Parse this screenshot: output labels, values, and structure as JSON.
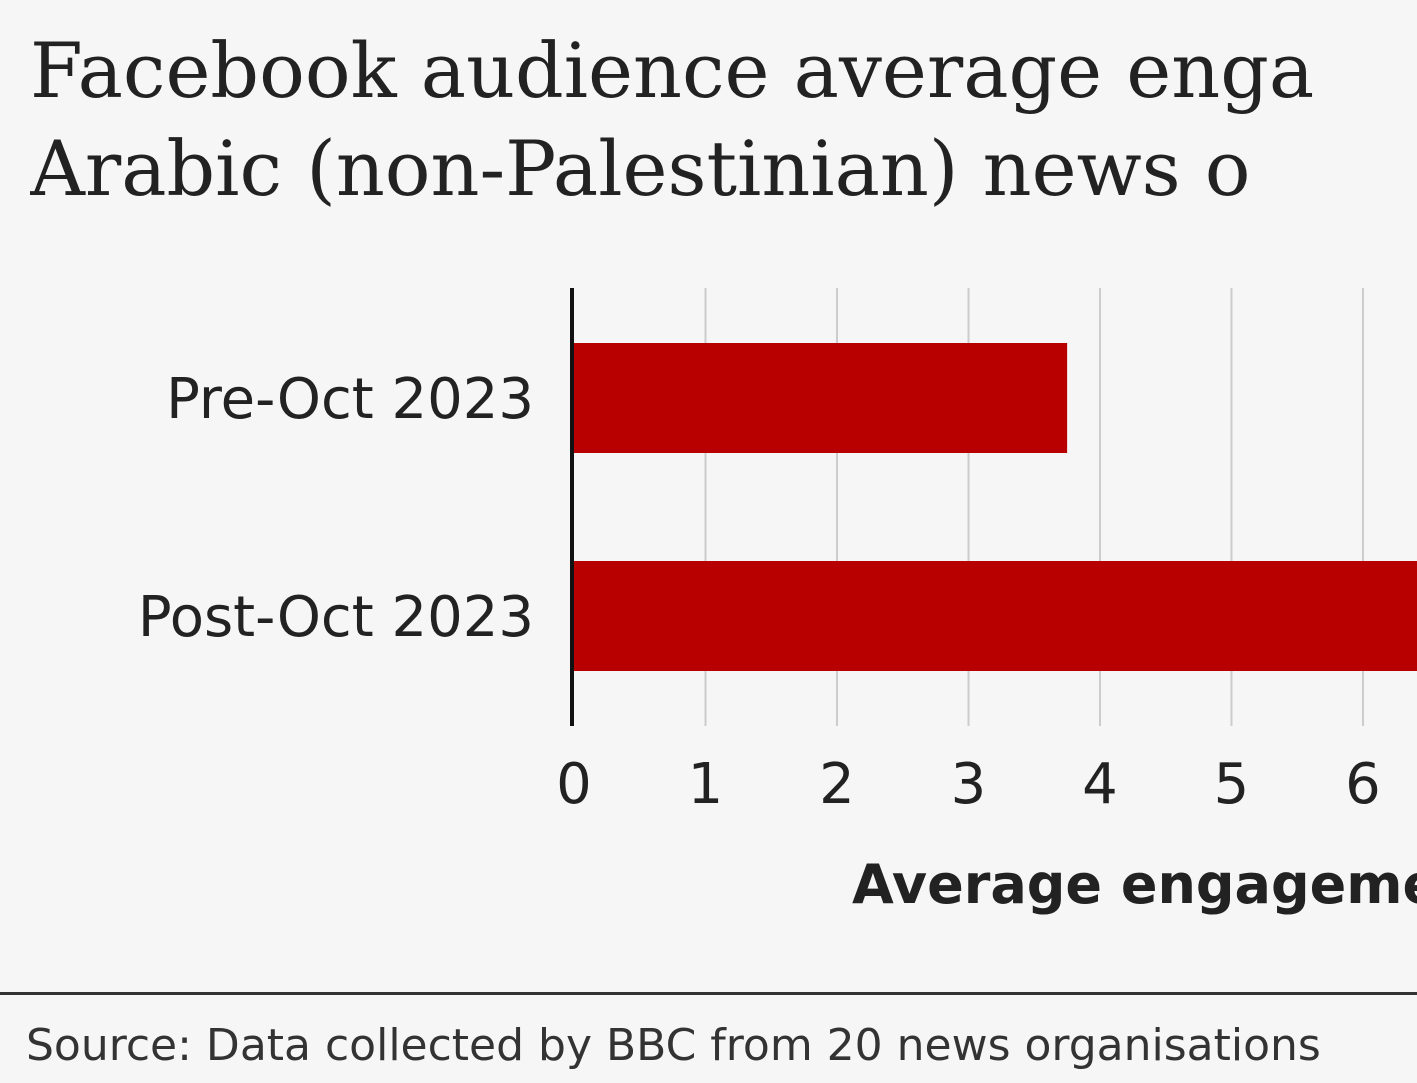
{
  "chart_data": {
    "type": "bar",
    "orientation": "horizontal",
    "title_lines": [
      "Facebook audience average enga",
      "Arabic (non-Palestinian) news o"
    ],
    "categories": [
      "Pre-Oct 2023",
      "Post-Oct 2023"
    ],
    "values": [
      3.75,
      6.6
    ],
    "ticks": [
      "0",
      "1",
      "2",
      "3",
      "4",
      "5",
      "6"
    ],
    "xlim": [
      0,
      6.4
    ],
    "xlabel": "Average engageme",
    "grid": true,
    "bar_color": "#b80000",
    "source": "Source: Data collected by BBC from 20 news organisations"
  }
}
